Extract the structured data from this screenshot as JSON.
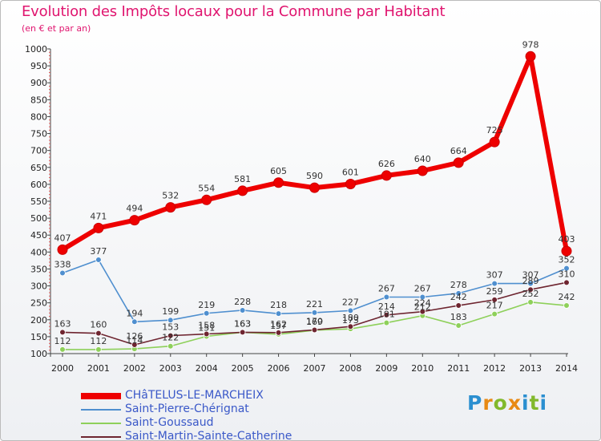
{
  "header": {
    "title": "Evolution des Impôts locaux pour la Commune par Habitant",
    "subtitle": "(en € et par an)"
  },
  "logo": {
    "letters": [
      "P",
      "r",
      "o",
      "x",
      "i",
      "t",
      "i"
    ],
    "colors": [
      "#2b8fd0",
      "#e88a14",
      "#82b92c",
      "#e88a14",
      "#2b8fd0",
      "#82b92c",
      "#2b8fd0"
    ]
  },
  "chart_data": {
    "type": "line",
    "title": "Evolution des Impôts locaux pour la Commune par Habitant",
    "subtitle": "(en € et par an)",
    "xlabel": "",
    "ylabel": "",
    "ylim": [
      100,
      1000
    ],
    "yticks": [
      100,
      150,
      200,
      250,
      300,
      350,
      400,
      450,
      500,
      550,
      600,
      650,
      700,
      750,
      800,
      850,
      900,
      950,
      1000
    ],
    "grid": false,
    "legend_position": "bottom-left",
    "categories": [
      "2000",
      "2001",
      "2002",
      "2003",
      "2004",
      "2005",
      "2006",
      "2007",
      "2008",
      "2009",
      "2010",
      "2011",
      "2012",
      "2013",
      "2014"
    ],
    "series": [
      {
        "name": "CHâTELUS-LE-MARCHEIX",
        "color": "#ee0000",
        "values": [
          407,
          471,
          494,
          532,
          554,
          581,
          605,
          590,
          601,
          626,
          640,
          664,
          725,
          978,
          403
        ],
        "labels": [
          "407",
          "471",
          "494",
          "532",
          "554",
          "581",
          "605",
          "590",
          "601",
          "626",
          "640",
          "664",
          "725",
          "978",
          "403"
        ]
      },
      {
        "name": "Saint-Pierre-Chérignat",
        "color": "#4f8fcf",
        "values": [
          338,
          377,
          194,
          199,
          219,
          228,
          218,
          221,
          227,
          267,
          267,
          278,
          307,
          307,
          352
        ],
        "labels": [
          "338",
          "377",
          "194",
          "199",
          "219",
          "228",
          "218",
          "221",
          "227",
          "267",
          "267",
          "278",
          "307",
          "307",
          "352"
        ]
      },
      {
        "name": "Saint-Goussaud",
        "color": "#8ed05a",
        "values": [
          112,
          112,
          114,
          122,
          151,
          163,
          157,
          169,
          173,
          191,
          212,
          183,
          217,
          252,
          242
        ],
        "labels": [
          "112",
          "112",
          "114",
          "122",
          "151",
          "163",
          "157",
          "169",
          "173",
          "191",
          "212",
          "183",
          "217",
          "252",
          "242"
        ]
      },
      {
        "name": "Saint-Martin-Sainte-Catherine",
        "color": "#6e2530",
        "values": [
          163,
          160,
          126,
          153,
          158,
          163,
          162,
          170,
          180,
          214,
          224,
          242,
          259,
          289,
          310
        ],
        "labels": [
          "163",
          "160",
          "126",
          "153",
          "158",
          "163",
          "162",
          "170",
          "180",
          "214",
          "224",
          "242",
          "259",
          "289",
          "310"
        ]
      }
    ]
  }
}
